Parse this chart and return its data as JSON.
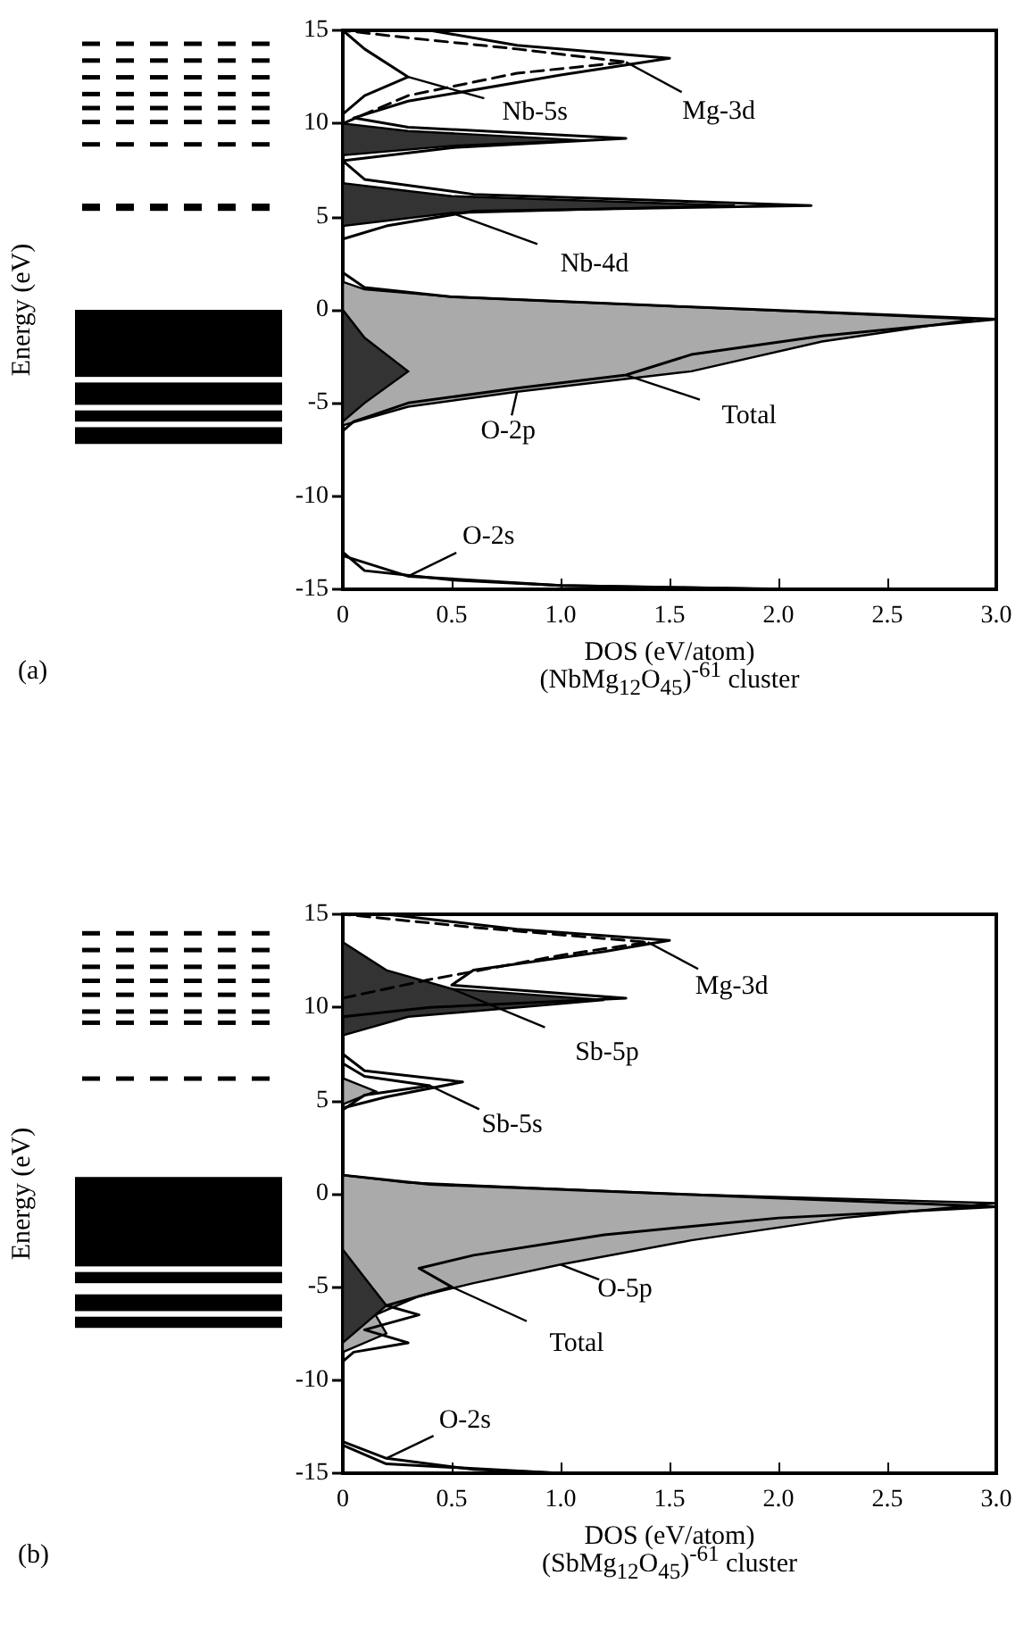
{
  "chart_data": [
    {
      "type": "line",
      "subtitle": "(NbMg$_{12}$O$_{45}$)$^{-61}$ cluster",
      "xlabel": "DOS (eV/atom)",
      "ylabel": "Energy (eV)",
      "xlim": [
        0,
        3
      ],
      "xticks": [
        0,
        0.5,
        {
          "value": 1,
          "label": "1.0"
        },
        1.5,
        {
          "value": 2,
          "label": "2.0"
        },
        2.5,
        {
          "value": 3,
          "label": "3.0"
        }
      ],
      "ylim": [
        -15,
        15
      ],
      "yticks": [
        -15,
        -10,
        -5,
        0,
        5,
        10,
        15
      ],
      "grid": false,
      "series": [
        {
          "type": "area",
          "color": "#aaaaaa",
          "x": [
            0,
            0.3,
            0.8,
            1.6,
            2.2,
            2.9,
            1.5,
            0.5,
            0.1,
            0
          ],
          "values": [
            -6.2,
            -5.2,
            -4.4,
            -3.3,
            -1.7,
            -0.5,
            0.2,
            0.7,
            1.1,
            1.5
          ]
        },
        {
          "type": "area",
          "color": "#333333",
          "x": [
            0,
            0.1,
            0.3,
            0.1,
            0,
            0,
            0.5,
            1.8,
            0.5,
            0,
            0,
            0.5,
            1.1,
            0.3,
            0
          ],
          "values": [
            -6,
            -5,
            -3.3,
            -1.5,
            0,
            4.5,
            5.2,
            5.6,
            6.1,
            6.8,
            8.3,
            8.8,
            9.1,
            9.6,
            10
          ]
        },
        {
          "type": "line",
          "color": "#000000",
          "x": [
            2.1,
            1,
            0.5,
            0.1,
            0,
            0,
            0.05,
            0.3,
            0.8,
            1.3,
            1.6,
            2.2,
            3,
            1.5,
            0.5,
            0.1,
            0,
            0,
            0.2,
            0.6,
            2.15,
            0.6,
            0.1,
            0,
            0.5,
            1.3,
            0.3,
            0.05,
            0.3,
            1,
            1.5,
            0.8,
            0.5,
            0.4
          ],
          "values": [
            -15,
            -14.8,
            -14.5,
            -14,
            -13,
            -6.5,
            -6,
            -5,
            -4.2,
            -3.5,
            -2.4,
            -1.4,
            -0.5,
            0.2,
            0.7,
            1.2,
            2,
            3.8,
            4.5,
            5.3,
            5.6,
            6.2,
            7,
            8,
            8.7,
            9.2,
            9.8,
            10.3,
            11.2,
            12.6,
            13.5,
            14.2,
            14.8,
            15
          ]
        },
        {
          "type": "line",
          "color": "#000000",
          "x": [
            0,
            0.3,
            1,
            2
          ],
          "values": [
            -13.2,
            -14.3,
            -14.8,
            -15
          ]
        },
        {
          "type": "line",
          "color": "#000000",
          "x": [
            0,
            0.1,
            0.3,
            0.1,
            0
          ],
          "values": [
            10.5,
            11.5,
            12.5,
            14,
            15
          ]
        },
        {
          "type": "line",
          "color": "#000000",
          "line_style": "dashed",
          "x": [
            0,
            0.3,
            0.8,
            1.3,
            0.8,
            0.3,
            0
          ],
          "values": [
            10,
            11.5,
            12.7,
            13.3,
            14,
            14.6,
            15
          ]
        }
      ],
      "annotations": [
        "(a)",
        {
          "text": "Nb-5s",
          "x": 0.3,
          "y": 12.5
        },
        {
          "text": "Mg-3d",
          "x": 1.3,
          "y": 13.3
        },
        {
          "text": "Nb-4d",
          "x": 0.5,
          "y": 5.2
        },
        {
          "text": "O-2p",
          "x": 0.8,
          "y": -4.4
        },
        {
          "text": "Total",
          "x": 1.3,
          "y": -3.5
        },
        {
          "text": "O-2s",
          "x": 0.3,
          "y": -14.3
        }
      ]
    },
    {
      "type": "line",
      "subtitle": "(SbMg$_{12}$O$_{45}$)$^{-61}$ cluster",
      "xlabel": "DOS (eV/atom)",
      "ylabel": "Energy (eV)",
      "xlim": [
        0,
        3
      ],
      "xticks": [
        0,
        0.5,
        {
          "value": 1,
          "label": "1.0"
        },
        1.5,
        {
          "value": 2,
          "label": "2.0"
        },
        2.5,
        {
          "value": 3,
          "label": "3.0"
        }
      ],
      "ylim": [
        -15,
        15
      ],
      "yticks": [
        -15,
        -10,
        -5,
        0,
        5,
        10,
        15
      ],
      "grid": false,
      "series": [
        {
          "type": "area",
          "color": "#aaaaaa",
          "x": [
            0,
            0.2,
            0.15,
            0.35,
            0.6,
            1,
            1.6,
            2.3,
            3,
            1.5,
            0.3,
            0,
            0,
            0.15,
            0
          ],
          "values": [
            -8.5,
            -7.5,
            -6.5,
            -5.5,
            -4.8,
            -3.8,
            -2.5,
            -1.3,
            -0.5,
            0,
            0.6,
            1,
            4.8,
            5.5,
            6.2
          ]
        },
        {
          "type": "area",
          "color": "#333333",
          "x": [
            0,
            0.2,
            0.1,
            0,
            0,
            0.3,
            1.2,
            0.5,
            0.2,
            0
          ],
          "values": [
            -8,
            -6,
            -4.5,
            -3,
            8.5,
            9.5,
            10.4,
            11,
            12,
            13.5
          ]
        },
        {
          "type": "line",
          "color": "#000000",
          "x": [
            1,
            0.2,
            0,
            0,
            0.05,
            0.3,
            0.1,
            0.35,
            0.2,
            0.5,
            0.35,
            0.6,
            1.2,
            2,
            3,
            1.5,
            0.4,
            0,
            0,
            0.2,
            0.55,
            0.1,
            0,
            0,
            0.4,
            1.3,
            0.5,
            0.6,
            1.2,
            1.5,
            0.8,
            0.2
          ],
          "values": [
            -15,
            -14.5,
            -13.5,
            -9,
            -8.5,
            -8,
            -7.3,
            -6.5,
            -6,
            -5,
            -4,
            -3.3,
            -2.2,
            -1.3,
            -0.7,
            0,
            0.5,
            1,
            4.6,
            5.2,
            6,
            6.6,
            7.5,
            9.5,
            10,
            10.5,
            11.2,
            12,
            13,
            13.6,
            14.2,
            15
          ]
        },
        {
          "type": "line",
          "color": "#000000",
          "x": [
            0,
            0.2,
            0.6,
            1
          ],
          "values": [
            -13.3,
            -14.2,
            -14.8,
            -15
          ]
        },
        {
          "type": "line",
          "color": "#000000",
          "x": [
            0,
            0.1,
            0.4,
            0.1,
            0
          ],
          "values": [
            4.5,
            5.3,
            5.8,
            6.3,
            7
          ]
        },
        {
          "type": "line",
          "color": "#000000",
          "line_style": "dashed",
          "x": [
            0,
            0.4,
            1,
            1.4,
            0.6,
            0
          ],
          "values": [
            10.5,
            11.5,
            12.8,
            13.5,
            14.3,
            15
          ]
        }
      ],
      "annotations": [
        "(b)",
        {
          "text": "Mg-3d",
          "x": 1.4,
          "y": 13.5
        },
        {
          "text": "Sb-5p",
          "x": 0.5,
          "y": 11
        },
        {
          "text": "Sb-5s",
          "x": 0.4,
          "y": 5.8
        },
        {
          "text": "O-5p",
          "x": 1,
          "y": -3.8
        },
        {
          "text": "Total",
          "x": 0.5,
          "y": -5
        },
        {
          "text": "O-2s",
          "x": 0.2,
          "y": -14.2
        }
      ]
    }
  ]
}
